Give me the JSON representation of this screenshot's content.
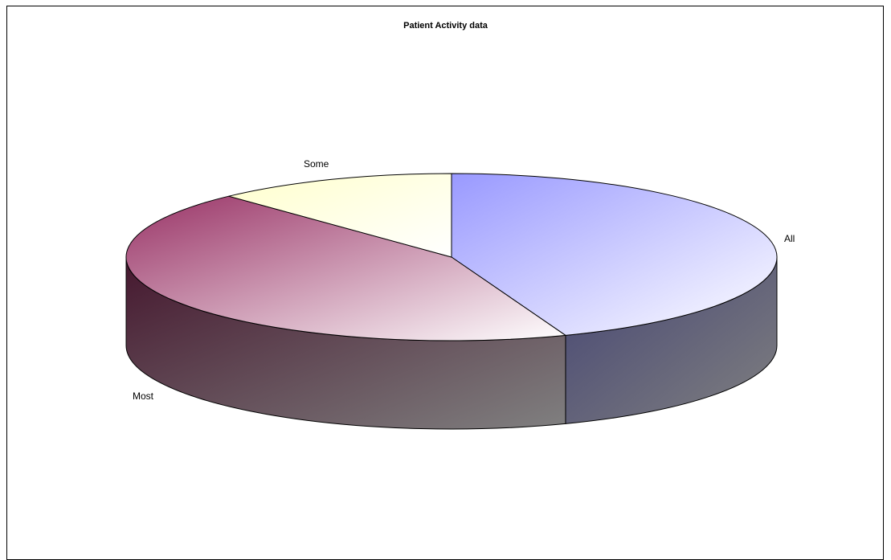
{
  "chart_data": {
    "type": "pie",
    "style": "3d",
    "title": "Patient Activity data",
    "legend": "none",
    "slices": [
      {
        "label": "All",
        "value": 44.3,
        "color": "#9999ff"
      },
      {
        "label": "Most",
        "value": 43.7,
        "color": "#993366"
      },
      {
        "label": "Some",
        "value": 12.0,
        "color": "#ffffcc"
      }
    ]
  }
}
